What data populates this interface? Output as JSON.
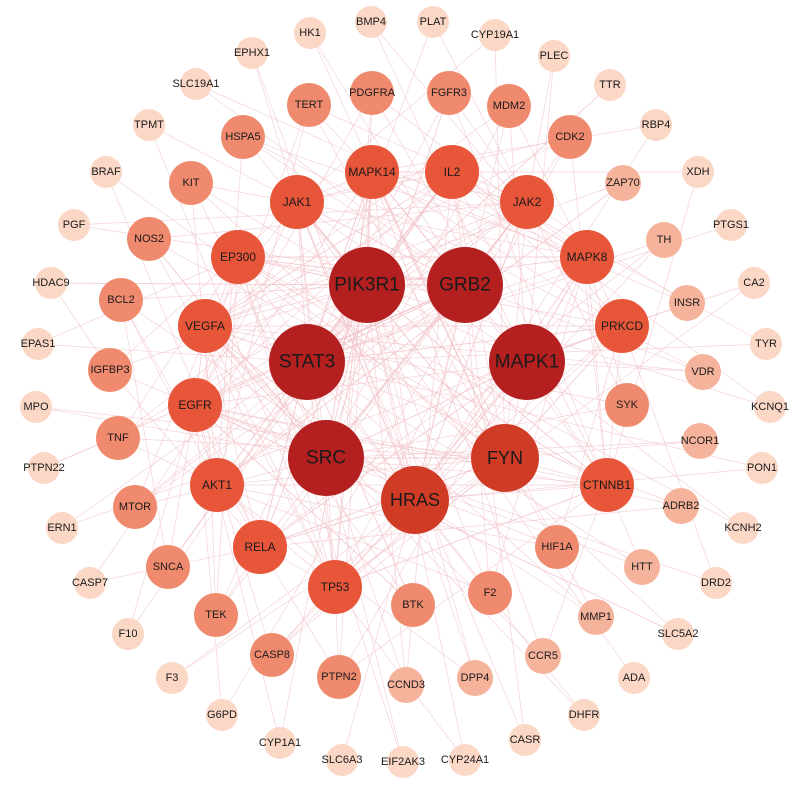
{
  "network": {
    "colors": {
      "tier1": "#b3201f",
      "tier2": "#d03b26",
      "tier3": "#e8563a",
      "tier4": "#f08a6e",
      "tier5": "#f6b39c",
      "tier6": "#fbd7c6",
      "edge": "#f2c4cb",
      "label_dark": "#1a1a1a"
    },
    "tiers": {
      "tier1": [
        "PIK3R1",
        "GRB2",
        "STAT3",
        "MAPK1",
        "SRC"
      ],
      "tier2": [
        "FYN",
        "HRAS"
      ],
      "tier3": [
        "JAK1",
        "MAPK14",
        "IL2",
        "JAK2",
        "EP300",
        "MAPK8",
        "VEGFA",
        "PRKCD",
        "EGFR",
        "AKT1",
        "RELA",
        "TP53",
        "CTNNB1"
      ],
      "tier4": [
        "TERT",
        "PDGFRA",
        "FGFR3",
        "MDM2",
        "CDK2",
        "HSPA5",
        "KIT",
        "NOS2",
        "BCL2",
        "IGFBP3",
        "TNF",
        "MTOR",
        "SNCA",
        "TEK",
        "CASP8",
        "PTPN2",
        "BTK",
        "F2",
        "HIF1A",
        "SYK"
      ],
      "tier5": [
        "ZAP70",
        "TH",
        "INSR",
        "VDR",
        "NCOR1",
        "ADRB2",
        "HTT",
        "MMP1",
        "CCR5",
        "DPP4",
        "CCND3"
      ],
      "tier6": [
        "HK1",
        "BMP4",
        "PLAT",
        "CYP19A1",
        "EPHX1",
        "PLEC",
        "SLC19A1",
        "TTR",
        "TPMT",
        "RBP4",
        "BRAF",
        "XDH",
        "PGF",
        "PTGS1",
        "HDAC9",
        "CA2",
        "EPAS1",
        "TYR",
        "MPO",
        "KCNQ1",
        "PTPN22",
        "PON1",
        "ERN1",
        "KCNH2",
        "CASP7",
        "DRD2",
        "F10",
        "SLC5A2",
        "F3",
        "ADA",
        "G6PD",
        "DHFR",
        "CYP1A1",
        "CASR",
        "SLC6A3",
        "EIF2AK3",
        "CYP24A1"
      ]
    }
  }
}
